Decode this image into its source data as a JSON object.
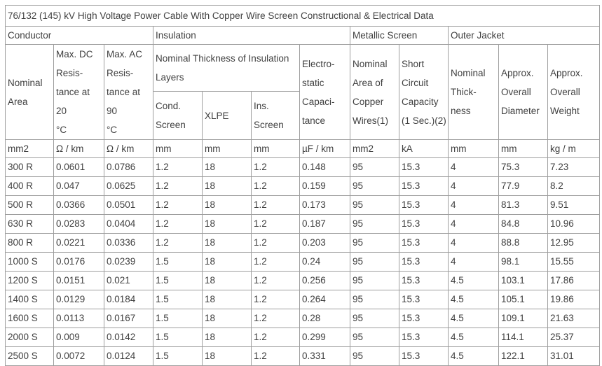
{
  "chart_data": {
    "type": "table",
    "title": "76/132 (145) kV High Voltage Power Cable With Copper Wire Screen Constructional & Electrical Data",
    "column_groups": [
      {
        "label": "Conductor",
        "colspan": 3
      },
      {
        "label": "Insulation",
        "colspan": 4
      },
      {
        "label": "Metallic Screen",
        "colspan": 2
      },
      {
        "label": "Outer Jacket",
        "colspan": 3
      }
    ],
    "headers": {
      "nominal_area": "Nominal\nArea",
      "max_dc_resistance": "Max. DC\nResis-\ntance at 20\n°C",
      "max_ac_resistance": "Max. AC\nResis-\ntance at 90\n°C",
      "insulation_layers": "Nominal Thickness of Insulation\nLayers",
      "cond_screen": "Cond.\nScreen",
      "xlpe": "XLPE",
      "ins_screen": "Ins.\nScreen",
      "electrostatic_capacitance": "Electro-\nstatic\nCapaci-\ntance",
      "copper_wires_area": "Nominal\nArea of\nCopper\nWires(1)",
      "short_circuit_capacity": "Short\nCircuit\nCapacity\n(1 Sec.)(2)",
      "jacket_thickness": "Nominal\nThick-\nness",
      "overall_diameter": "Approx.\nOverall\nDiameter",
      "overall_weight": "Approx.\nOverall\nWeight"
    },
    "units": [
      "mm2",
      "Ω / km",
      "Ω / km",
      "mm",
      "mm",
      "mm",
      "µF / km",
      "mm2",
      "kA",
      "mm",
      "mm",
      "kg / m"
    ],
    "rows": [
      [
        "300 R",
        "0.0601",
        "0.0786",
        "1.2",
        "18",
        "1.2",
        "0.148",
        "95",
        "15.3",
        "4",
        "75.3",
        "7.23"
      ],
      [
        "400 R",
        "0.047",
        "0.0625",
        "1.2",
        "18",
        "1.2",
        "0.159",
        "95",
        "15.3",
        "4",
        "77.9",
        "8.2"
      ],
      [
        "500 R",
        "0.0366",
        "0.0501",
        "1.2",
        "18",
        "1.2",
        "0.173",
        "95",
        "15.3",
        "4",
        "81.3",
        "9.51"
      ],
      [
        "630 R",
        "0.0283",
        "0.0404",
        "1.2",
        "18",
        "1.2",
        "0.187",
        "95",
        "15.3",
        "4",
        "84.8",
        "10.96"
      ],
      [
        "800 R",
        "0.0221",
        "0.0336",
        "1.2",
        "18",
        "1.2",
        "0.203",
        "95",
        "15.3",
        "4",
        "88.8",
        "12.95"
      ],
      [
        "1000 S",
        "0.0176",
        "0.0239",
        "1.5",
        "18",
        "1.2",
        "0.24",
        "95",
        "15.3",
        "4",
        "98.1",
        "15.55"
      ],
      [
        "1200 S",
        "0.0151",
        "0.021",
        "1.5",
        "18",
        "1.2",
        "0.256",
        "95",
        "15.3",
        "4.5",
        "103.1",
        "17.86"
      ],
      [
        "1400 S",
        "0.0129",
        "0.0184",
        "1.5",
        "18",
        "1.2",
        "0.264",
        "95",
        "15.3",
        "4.5",
        "105.1",
        "19.86"
      ],
      [
        "1600 S",
        "0.0113",
        "0.0167",
        "1.5",
        "18",
        "1.2",
        "0.28",
        "95",
        "15.3",
        "4.5",
        "109.1",
        "21.63"
      ],
      [
        "2000 S",
        "0.009",
        "0.0142",
        "1.5",
        "18",
        "1.2",
        "0.299",
        "95",
        "15.3",
        "4.5",
        "114.1",
        "25.37"
      ],
      [
        "2500 S",
        "0.0072",
        "0.0124",
        "1.5",
        "18",
        "1.2",
        "0.331",
        "95",
        "15.3",
        "4.5",
        "122.1",
        "31.01"
      ]
    ]
  },
  "colors": {
    "text": "#404040",
    "border": "#9e9e9e",
    "background": "#ffffff"
  }
}
